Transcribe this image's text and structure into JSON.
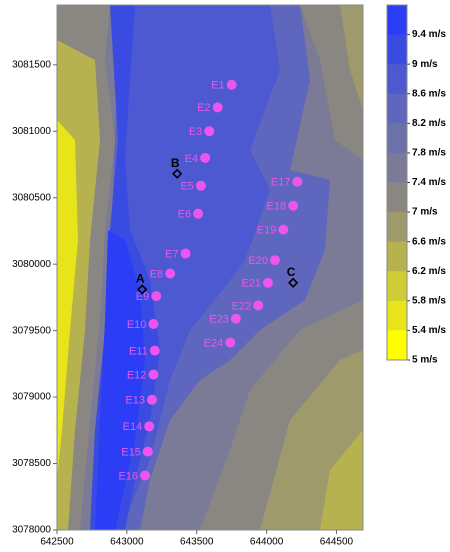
{
  "chart_data": {
    "type": "scatter",
    "xlim": [
      642500,
      644690
    ],
    "ylim": [
      3078000,
      3081950
    ],
    "xticks": [
      642500,
      643000,
      643500,
      644000,
      644500
    ],
    "yticks": [
      3078000,
      3078500,
      3079000,
      3079500,
      3080000,
      3080500,
      3081000,
      3081500
    ],
    "turbines": {
      "color": "#ee55ee",
      "labels": [
        "E1",
        "E2",
        "E3",
        "E4",
        "E5",
        "E6",
        "E7",
        "E8",
        "E9",
        "E10",
        "E11",
        "E12",
        "E13",
        "E14",
        "E15",
        "E16",
        "E17",
        "E18",
        "E19",
        "E20",
        "E21",
        "E22",
        "E23",
        "E24"
      ],
      "x": [
        643750,
        643650,
        643590,
        643560,
        643530,
        643510,
        643420,
        643310,
        643210,
        643190,
        643200,
        643190,
        643180,
        643160,
        643150,
        643130,
        644220,
        644190,
        644120,
        644060,
        644010,
        643940,
        643780,
        643740
      ],
      "y": [
        3081350,
        3081180,
        3081000,
        3080800,
        3080590,
        3080380,
        3080080,
        3079930,
        3079760,
        3079550,
        3079350,
        3079170,
        3078980,
        3078780,
        3078590,
        3078410,
        3080620,
        3080440,
        3080260,
        3080030,
        3079860,
        3079690,
        3079590,
        3079410
      ]
    },
    "points": {
      "color": "#000000",
      "labels": [
        "A",
        "B",
        "C"
      ],
      "x": [
        643110,
        643360,
        644190
      ],
      "y": [
        3079810,
        3080680,
        3079860
      ]
    },
    "colorbar": {
      "levels": [
        {
          "value": 9.4,
          "label": "9.4 m/s"
        },
        {
          "value": 9,
          "label": "9 m/s"
        },
        {
          "value": 8.6,
          "label": "8.6 m/s"
        },
        {
          "value": 8.2,
          "label": "8.2 m/s"
        },
        {
          "value": 7.8,
          "label": "7.8 m/s"
        },
        {
          "value": 7.4,
          "label": "7.4 m/s"
        },
        {
          "value": 7,
          "label": "7 m/s"
        },
        {
          "value": 6.6,
          "label": "6.6 m/s"
        },
        {
          "value": 6.2,
          "label": "6.2 m/s"
        },
        {
          "value": 5.8,
          "label": "5.8 m/s"
        },
        {
          "value": 5.4,
          "label": "5.4 m/s"
        },
        {
          "value": 5,
          "label": "5 m/s"
        }
      ],
      "colors": [
        "#2b3ef5",
        "#3a4be2",
        "#4c59d0",
        "#5e66bd",
        "#6d71aa",
        "#7b7b97",
        "#8a8783",
        "#9e9a6c",
        "#b6b250",
        "#d0cc35",
        "#e8e41a",
        "#ffff00"
      ]
    }
  }
}
